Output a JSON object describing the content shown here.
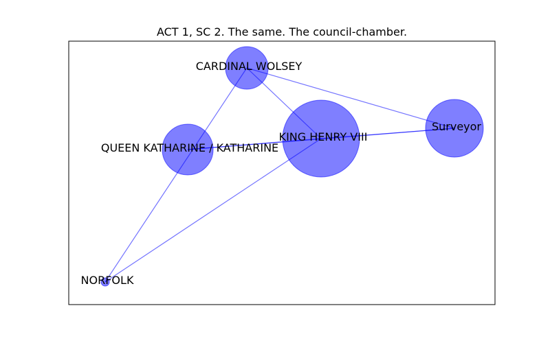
{
  "title": "ACT 1, SC 2. The same. The council-chamber.",
  "colors": {
    "node": "#0000ff",
    "edge": "#0000ff",
    "text": "#000000"
  },
  "nodes": [
    {
      "id": "cardinal-wolsey",
      "label": "CARDINAL WOLSEY"
    },
    {
      "id": "king-henry",
      "label": "KING HENRY VIII"
    },
    {
      "id": "surveyor",
      "label": "Surveyor"
    },
    {
      "id": "queen-katharine",
      "label": "QUEEN KATHARINE / KATHARINE"
    },
    {
      "id": "norfolk",
      "label": "NORFOLK"
    }
  ],
  "edges": [
    {
      "source": "cardinal-wolsey",
      "target": "king-henry"
    },
    {
      "source": "cardinal-wolsey",
      "target": "surveyor"
    },
    {
      "source": "cardinal-wolsey",
      "target": "norfolk"
    },
    {
      "source": "king-henry",
      "target": "surveyor"
    },
    {
      "source": "king-henry",
      "target": "queen-katharine"
    },
    {
      "source": "king-henry",
      "target": "norfolk"
    },
    {
      "source": "queen-katharine",
      "target": "surveyor"
    }
  ]
}
